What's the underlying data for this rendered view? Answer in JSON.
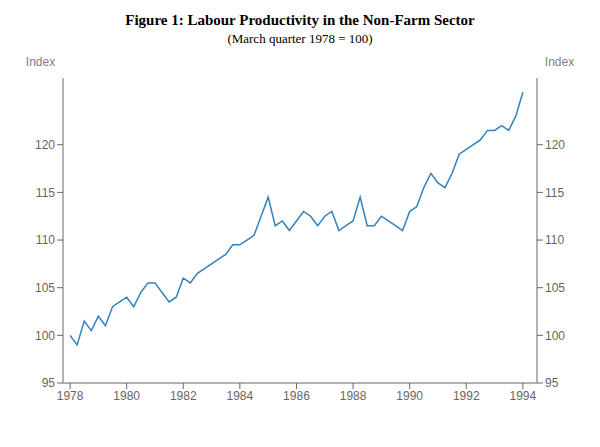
{
  "chart_data": {
    "type": "line",
    "title": "Figure 1: Labour Productivity in the Non-Farm Sector",
    "subtitle": "(March quarter 1978 = 100)",
    "ylabel": "Index",
    "y2label": "Index",
    "x": [
      1978.0,
      1978.25,
      1978.5,
      1978.75,
      1979.0,
      1979.25,
      1979.5,
      1979.75,
      1980.0,
      1980.25,
      1980.5,
      1980.75,
      1981.0,
      1981.25,
      1981.5,
      1981.75,
      1982.0,
      1982.25,
      1982.5,
      1982.75,
      1983.0,
      1983.25,
      1983.5,
      1983.75,
      1984.0,
      1984.25,
      1984.5,
      1984.75,
      1985.0,
      1985.25,
      1985.5,
      1985.75,
      1986.0,
      1986.25,
      1986.5,
      1986.75,
      1987.0,
      1987.25,
      1987.5,
      1987.75,
      1988.0,
      1988.25,
      1988.5,
      1988.75,
      1989.0,
      1989.25,
      1989.5,
      1989.75,
      1990.0,
      1990.25,
      1990.5,
      1990.75,
      1991.0,
      1991.25,
      1991.5,
      1991.75,
      1992.0,
      1992.25,
      1992.5,
      1992.75,
      1993.0,
      1993.25,
      1993.5,
      1993.75,
      1994.0
    ],
    "values": [
      100.0,
      99.0,
      101.5,
      100.5,
      102.0,
      101.0,
      103.0,
      103.5,
      104.0,
      103.0,
      104.5,
      105.5,
      105.5,
      104.5,
      103.5,
      104.0,
      106.0,
      105.5,
      106.5,
      107.0,
      107.5,
      108.0,
      108.5,
      109.5,
      109.5,
      110.0,
      110.5,
      112.5,
      114.5,
      111.5,
      112.0,
      111.0,
      112.0,
      113.0,
      112.5,
      111.5,
      112.5,
      113.0,
      111.0,
      111.5,
      112.0,
      114.5,
      111.5,
      111.5,
      112.5,
      112.0,
      111.5,
      111.0,
      113.0,
      113.5,
      115.5,
      117.0,
      116.0,
      115.5,
      117.0,
      119.0,
      119.5,
      120.0,
      120.5,
      121.5,
      121.5,
      122.0,
      121.5,
      123.0,
      125.5
    ],
    "xlim": [
      1977.75,
      1994.5
    ],
    "xticks": [
      1978,
      1980,
      1982,
      1984,
      1986,
      1988,
      1990,
      1992,
      1994
    ],
    "ylim": [
      95,
      127
    ],
    "yticks": [
      95,
      100,
      105,
      110,
      115,
      120
    ],
    "y2lim": [
      95,
      127
    ],
    "y2ticks": [
      95,
      100,
      105,
      110,
      115,
      120
    ],
    "grid": false
  }
}
